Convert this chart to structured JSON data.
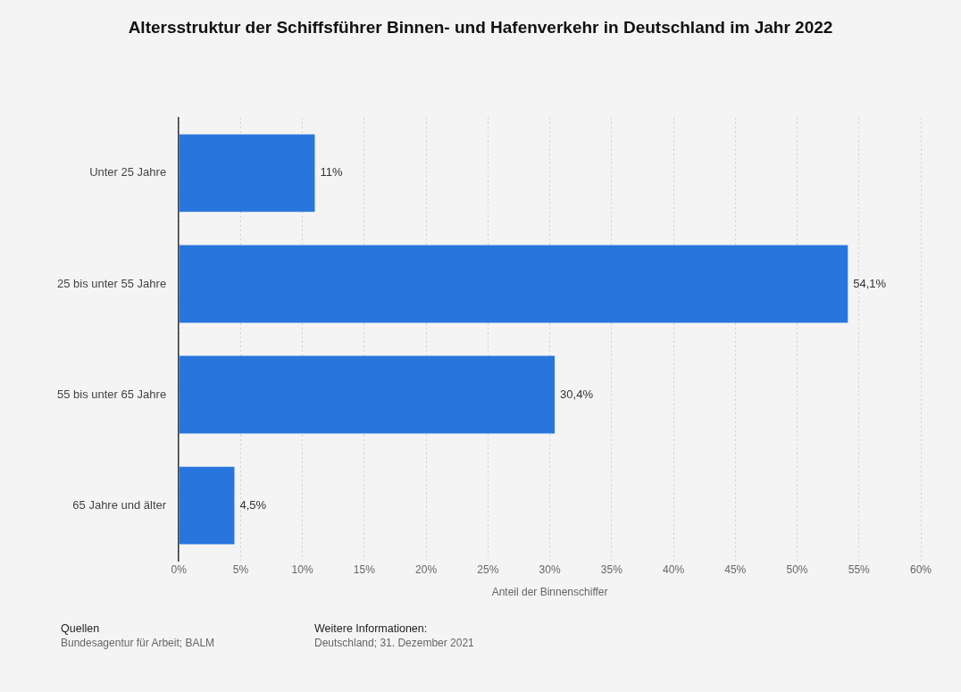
{
  "chart_data": {
    "type": "bar",
    "orientation": "horizontal",
    "title": "Altersstruktur der Schiffsführer Binnen- und Hafenverkehr in Deutschland im Jahr 2022",
    "categories": [
      "Unter 25 Jahre",
      "25 bis unter 55 Jahre",
      "55 bis unter 65 Jahre",
      "65 Jahre und älter"
    ],
    "values": [
      11,
      54.1,
      30.4,
      4.5
    ],
    "value_labels": [
      "11%",
      "54,1%",
      "30,4%",
      "4,5%"
    ],
    "color": "#2876dd",
    "xlabel": "Anteil der Binnenschiffer",
    "xlim": [
      0,
      60
    ],
    "xticks": [
      {
        "value": 0,
        "label": "0%"
      },
      {
        "value": 5,
        "label": "5%"
      },
      {
        "value": 10,
        "label": "10%"
      },
      {
        "value": 15,
        "label": "15%"
      },
      {
        "value": 20,
        "label": "20%"
      },
      {
        "value": 25,
        "label": "25%"
      },
      {
        "value": 30,
        "label": "30%"
      },
      {
        "value": 35,
        "label": "35%"
      },
      {
        "value": 40,
        "label": "40%"
      },
      {
        "value": 45,
        "label": "45%"
      },
      {
        "value": 50,
        "label": "50%"
      },
      {
        "value": 55,
        "label": "55%"
      },
      {
        "value": 60,
        "label": "60%"
      }
    ],
    "grid": "x",
    "legend": false,
    "annotations": [
      "Quellen",
      "Bundesagentur für Arbeit; BALM",
      "Weitere Informationen:",
      "Deutschland; 31. Dezember 2021"
    ]
  }
}
